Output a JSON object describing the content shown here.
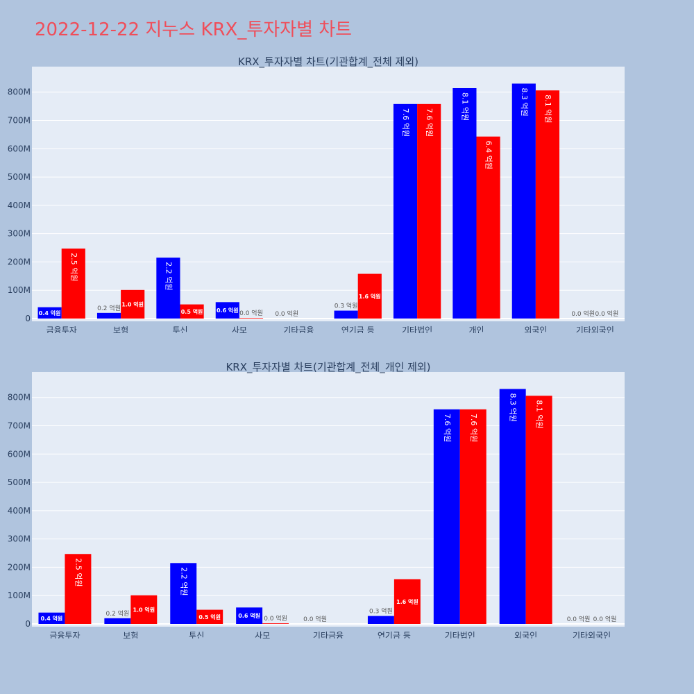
{
  "page": {
    "title": "2022-12-22 지누스 KRX_투자자별 차트"
  },
  "colors": {
    "background": "#b0c4de",
    "plot_background": "#e5ecf6",
    "title": "#ef4e5a",
    "buy": "#0000ff",
    "sell": "#ff0000",
    "axis_text": "#2a3f5f"
  },
  "chart_data": [
    {
      "type": "bar",
      "title": "KRX_투자자별 차트(기관합계_전체 제외)",
      "categories": [
        "금융투자",
        "보험",
        "투신",
        "사모",
        "기타금융",
        "연기금 등",
        "기타법인",
        "개인",
        "외국인",
        "기타외국인"
      ],
      "ylim": [
        0,
        890000000
      ],
      "yticks": [
        0,
        100000000,
        200000000,
        300000000,
        400000000,
        500000000,
        600000000,
        700000000,
        800000000
      ],
      "ytick_labels": [
        "0",
        "100M",
        "200M",
        "300M",
        "400M",
        "500M",
        "600M",
        "700M",
        "800M"
      ],
      "grid": true,
      "series": [
        {
          "values": [
            40000000,
            20000000,
            215000000,
            58000000,
            0,
            28000000,
            758000000,
            814000000,
            830000000,
            0
          ],
          "labels": [
            "0.4 억원",
            "0.2 억원",
            "2.2 억원",
            "0.6 억원",
            "0.0 억원",
            "0.3 억원",
            "7.6 억원",
            "8.1 억원",
            "8.3 억원",
            "0.0 억원"
          ]
        },
        {
          "values": [
            247000000,
            101000000,
            50000000,
            2000000,
            0,
            158000000,
            758000000,
            643000000,
            806000000,
            0
          ],
          "labels": [
            "2.5 억원",
            "1.0 억원",
            "0.5 억원",
            "0.0 억원",
            "",
            "1.6 억원",
            "7.6 억원",
            "6.4 억원",
            "8.1 억원",
            "0.0 억원"
          ]
        }
      ]
    },
    {
      "type": "bar",
      "title": "KRX_투자자별 차트(기관합계_전체_개인 제외)",
      "categories": [
        "금융투자",
        "보험",
        "투신",
        "사모",
        "기타금융",
        "연기금 등",
        "기타법인",
        "외국인",
        "기타외국인"
      ],
      "ylim": [
        0,
        890000000
      ],
      "yticks": [
        0,
        100000000,
        200000000,
        300000000,
        400000000,
        500000000,
        600000000,
        700000000,
        800000000
      ],
      "ytick_labels": [
        "0",
        "100M",
        "200M",
        "300M",
        "400M",
        "500M",
        "600M",
        "700M",
        "800M"
      ],
      "grid": true,
      "series": [
        {
          "values": [
            40000000,
            20000000,
            215000000,
            58000000,
            0,
            28000000,
            758000000,
            830000000,
            0
          ],
          "labels": [
            "0.4 억원",
            "0.2 억원",
            "2.2 억원",
            "0.6 억원",
            "0.0 억원",
            "0.3 억원",
            "7.6 억원",
            "8.3 억원",
            "0.0 억원"
          ]
        },
        {
          "values": [
            247000000,
            101000000,
            50000000,
            2000000,
            0,
            158000000,
            758000000,
            806000000,
            0
          ],
          "labels": [
            "2.5 억원",
            "1.0 억원",
            "0.5 억원",
            "0.0 억원",
            "",
            "1.6 억원",
            "7.6 억원",
            "8.1 억원",
            "0.0 억원"
          ]
        }
      ]
    }
  ]
}
